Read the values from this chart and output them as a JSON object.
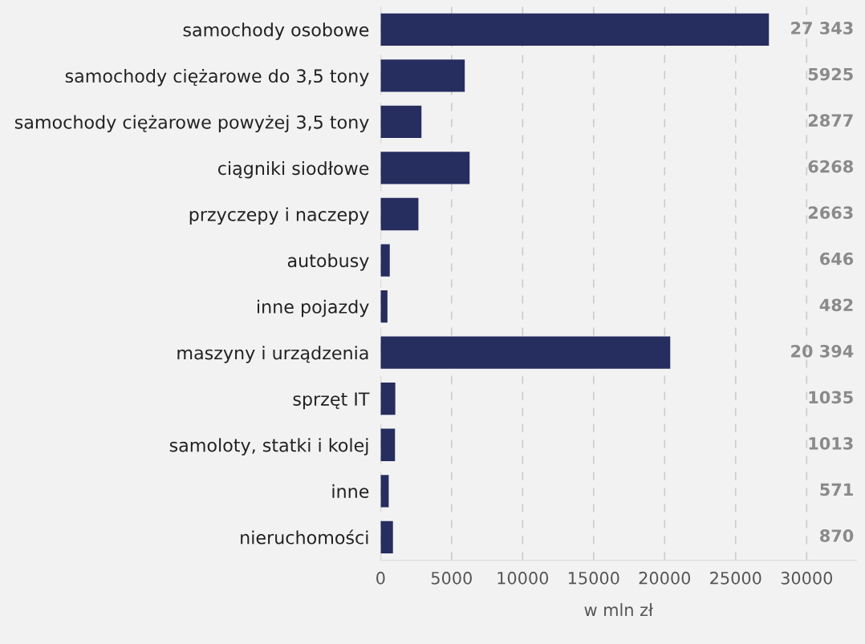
{
  "chart_data": {
    "type": "bar",
    "orientation": "horizontal",
    "xlabel": "w mln zł",
    "categories": [
      "samochody osobowe",
      "samochody ciężarowe do 3,5 tony",
      "samochody ciężarowe powyżej 3,5 tony",
      "ciągniki siodłowe",
      "przyczepy i naczepy",
      "autobusy",
      "inne pojazdy",
      "maszyny i urządzenia",
      "sprzęt IT",
      "samoloty, statki i kolej",
      "inne",
      "nieruchomości"
    ],
    "values": [
      27343,
      5925,
      2877,
      6268,
      2663,
      646,
      482,
      20394,
      1035,
      1013,
      571,
      870
    ],
    "value_labels": [
      "27 343",
      "5925",
      "2877",
      "6268",
      "2663",
      "646",
      "482",
      "20 394",
      "1035",
      "1013",
      "571",
      "870"
    ],
    "color": "#262d5f",
    "xlim": [
      0,
      33500
    ],
    "xticks": [
      0,
      5000,
      10000,
      15000,
      20000,
      25000,
      30000
    ],
    "grid": "x"
  }
}
